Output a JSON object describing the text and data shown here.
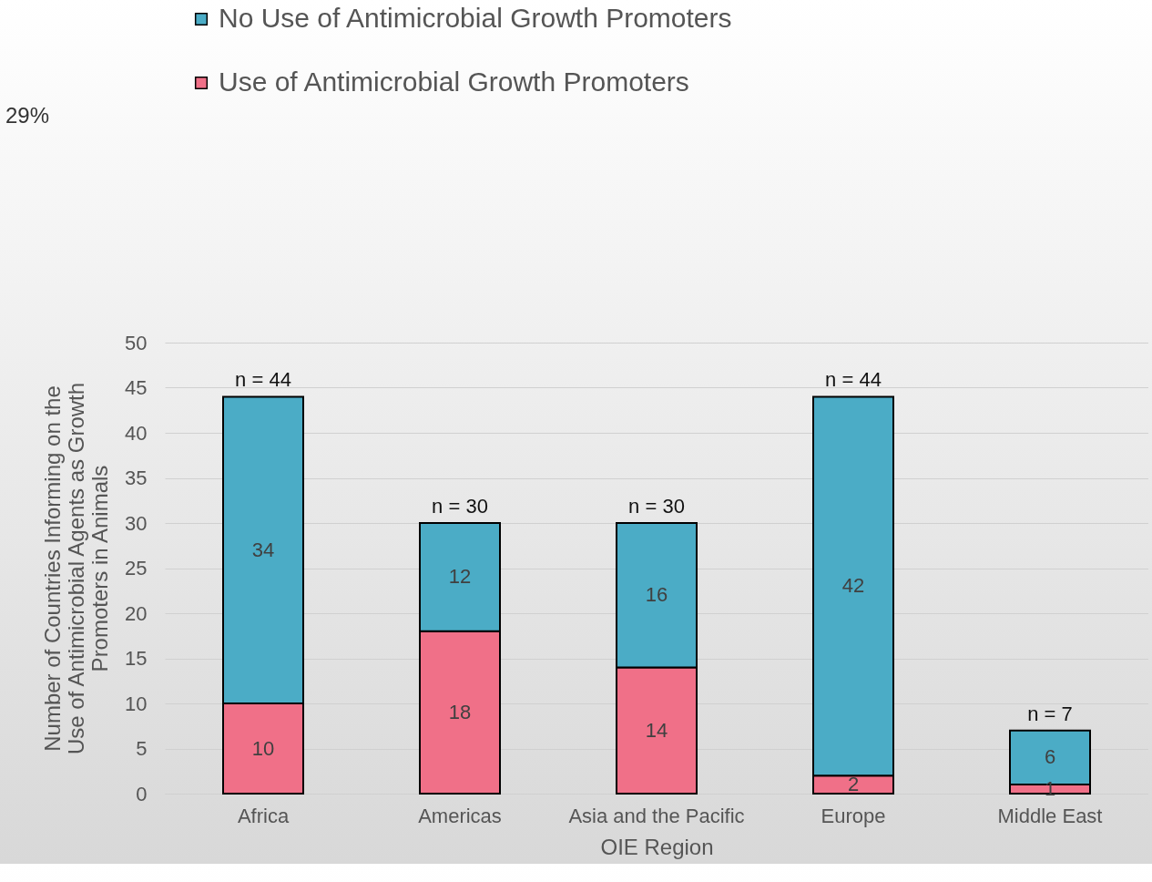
{
  "chart_data": {
    "type": "bar",
    "stacked": true,
    "categories": [
      "Africa",
      "Americas",
      "Asia and the Pacific",
      "Europe",
      "Middle East"
    ],
    "series": [
      {
        "name": "Use of Antimicrobial Growth Promoters",
        "color": "#f07088",
        "values": [
          10,
          18,
          14,
          2,
          1
        ]
      },
      {
        "name": "No Use of Antimicrobial Growth Promoters",
        "color": "#4bacc6",
        "values": [
          34,
          12,
          16,
          42,
          6
        ]
      }
    ],
    "data_labels": true,
    "xlabel": "OIE Region",
    "ylabel": "Number of Countries Informing on the Use of Antimicrobial Agents as Growth Promoters in Animals",
    "ylim": [
      0,
      50
    ],
    "yticks": [
      0,
      5,
      10,
      15,
      20,
      25,
      30,
      35,
      40,
      45,
      50
    ],
    "grid": "y",
    "legend": "top left",
    "totals": [
      "n = 44",
      "n = 30",
      "n = 30",
      "n = 44",
      "n = 7"
    ],
    "annotations": [
      "29%"
    ]
  }
}
